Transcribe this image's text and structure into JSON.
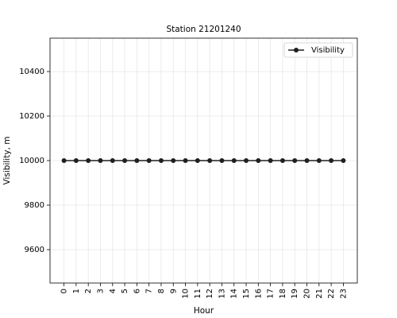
{
  "chart_data": {
    "type": "line",
    "title": "Station 21201240",
    "xlabel": "Hour",
    "ylabel": "Visibility, m",
    "x": [
      0,
      1,
      2,
      3,
      4,
      5,
      6,
      7,
      8,
      9,
      10,
      11,
      12,
      13,
      14,
      15,
      16,
      17,
      18,
      19,
      20,
      21,
      22,
      23
    ],
    "series": [
      {
        "name": "Visibility",
        "values": [
          10000,
          10000,
          10000,
          10000,
          10000,
          10000,
          10000,
          10000,
          10000,
          10000,
          10000,
          10000,
          10000,
          10000,
          10000,
          10000,
          10000,
          10000,
          10000,
          10000,
          10000,
          10000,
          10000,
          10000
        ],
        "color": "#1f1f1f",
        "marker": "circle"
      }
    ],
    "xticks": [
      "0",
      "1",
      "2",
      "3",
      "4",
      "5",
      "6",
      "7",
      "8",
      "9",
      "10",
      "11",
      "12",
      "13",
      "14",
      "15",
      "16",
      "17",
      "18",
      "19",
      "20",
      "21",
      "22",
      "23"
    ],
    "yticks": [
      "9600",
      "9800",
      "10000",
      "10200",
      "10400"
    ],
    "xlim": [
      -1.15,
      24.15
    ],
    "ylim": [
      9450,
      10550
    ],
    "grid": true,
    "legend_position": "top-right"
  }
}
